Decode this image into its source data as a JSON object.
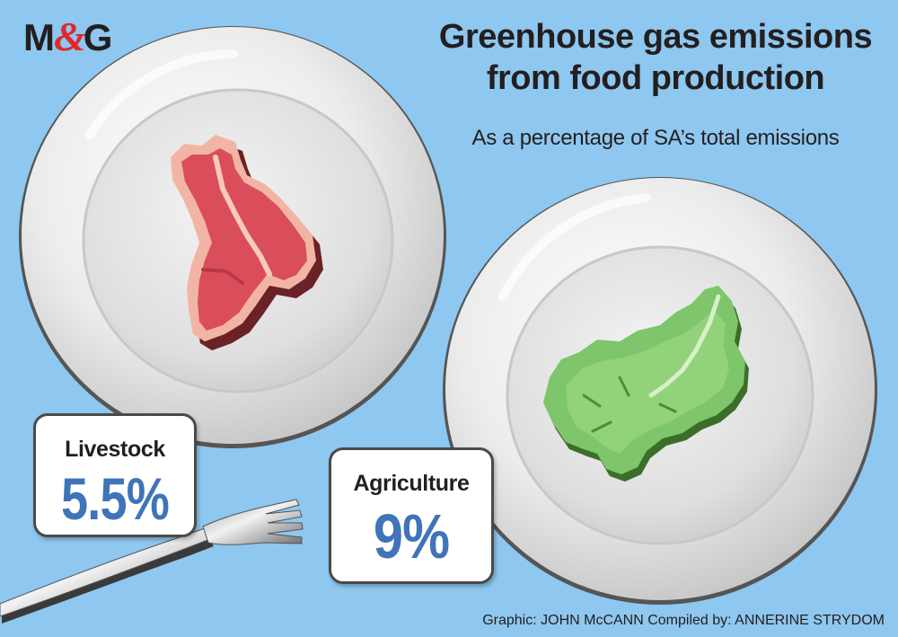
{
  "logo": {
    "m": "M",
    "amp": "&",
    "g": "G"
  },
  "title": {
    "line1": "Greenhouse gas emissions",
    "line2": "from food production"
  },
  "subtitle": "As a percentage of SA’s total emissions",
  "cards": {
    "livestock": {
      "label": "Livestock",
      "value": "5.5%"
    },
    "agriculture": {
      "label": "Agriculture",
      "value": "9%"
    }
  },
  "credit": "Graphic: JOHN McCANN  Compiled by: ANNERINE STRYDOM",
  "colors": {
    "background": "#8ec7ef",
    "value_text": "#3f74b9",
    "logo_amp": "#e0282e",
    "meat": "#d94e5a",
    "lettuce": "#7fc56b"
  },
  "icons": [
    "plate-icon",
    "steak-icon",
    "lettuce-icon",
    "fork-icon"
  ]
}
